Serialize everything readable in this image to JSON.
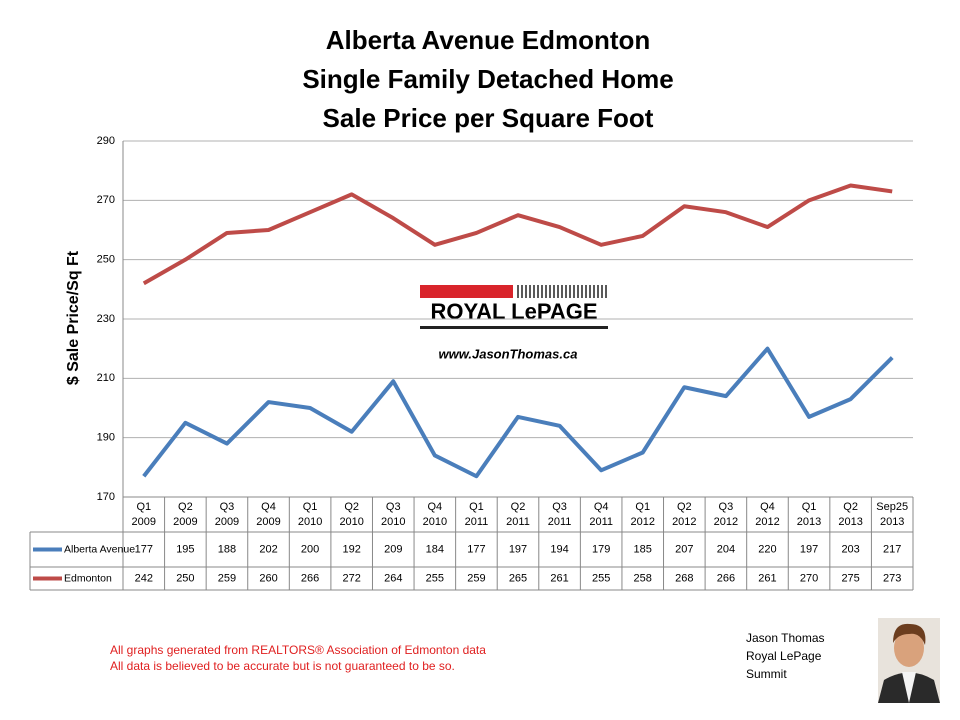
{
  "chart_data": {
    "type": "line",
    "title": [
      "Alberta Avenue Edmonton",
      "Single Family Detached Home",
      "Sale Price per Square Foot"
    ],
    "y_label": "$ Sale Price/Sq Ft",
    "categories": [
      [
        "Q1",
        "2009"
      ],
      [
        "Q2",
        "2009"
      ],
      [
        "Q3",
        "2009"
      ],
      [
        "Q4",
        "2009"
      ],
      [
        "Q1",
        "2010"
      ],
      [
        "Q2",
        "2010"
      ],
      [
        "Q3",
        "2010"
      ],
      [
        "Q4",
        "2010"
      ],
      [
        "Q1",
        "2011"
      ],
      [
        "Q2",
        "2011"
      ],
      [
        "Q3",
        "2011"
      ],
      [
        "Q4",
        "2011"
      ],
      [
        "Q1",
        "2012"
      ],
      [
        "Q2",
        "2012"
      ],
      [
        "Q3",
        "2012"
      ],
      [
        "Q4",
        "2012"
      ],
      [
        "Q1",
        "2013"
      ],
      [
        "Q2",
        "2013"
      ],
      [
        "Sep25",
        "2013"
      ]
    ],
    "series": [
      {
        "name": "Alberta Avenue",
        "color": "#4a7ebb",
        "values": [
          177,
          195,
          188,
          202,
          200,
          192,
          209,
          184,
          177,
          197,
          194,
          179,
          185,
          207,
          204,
          220,
          197,
          203,
          217
        ]
      },
      {
        "name": "Edmonton",
        "color": "#be4b48",
        "values": [
          242,
          250,
          259,
          260,
          266,
          272,
          264,
          255,
          259,
          265,
          261,
          255,
          258,
          268,
          266,
          261,
          270,
          275,
          273
        ]
      }
    ],
    "ylim": [
      170,
      290
    ],
    "yticks": [
      170,
      190,
      210,
      230,
      250,
      270,
      290
    ],
    "grid": true
  },
  "logo": {
    "brand": "ROYAL LePAGE",
    "url": "www.JasonThomas.ca"
  },
  "footnotes": [
    "All graphs generated from REALTORS® Association of Edmonton data",
    "All data is believed to be accurate but is not guaranteed to be so."
  ],
  "signature": [
    "Jason Thomas",
    "Royal LePage",
    "Summit"
  ]
}
